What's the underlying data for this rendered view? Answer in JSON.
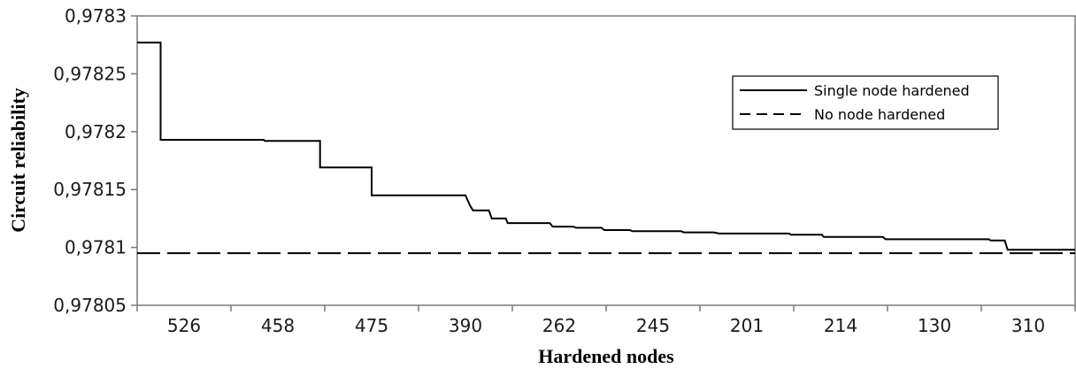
{
  "chart_data": {
    "type": "line",
    "title": "",
    "xlabel": "Hardened nodes",
    "ylabel": "Circuit reliability",
    "ylim": [
      0.97805,
      0.9783
    ],
    "y_ticks": [
      "0,97805",
      "0,9781",
      "0,97815",
      "0,9782",
      "0,97825",
      "0,9783"
    ],
    "y_tick_values": [
      0.97805,
      0.9781,
      0.97815,
      0.9782,
      0.97825,
      0.9783
    ],
    "categories": [
      "526",
      "458",
      "475",
      "390",
      "262",
      "245",
      "201",
      "214",
      "130",
      "310"
    ],
    "x_range": [
      0,
      10
    ],
    "legend_position": "top-right",
    "grid": false,
    "series": [
      {
        "name": "Single node hardened",
        "style": "solid",
        "color": "#000000",
        "points": [
          [
            0.0,
            0.978277
          ],
          [
            0.25,
            0.978277
          ],
          [
            0.25,
            0.978193
          ],
          [
            1.35,
            0.978193
          ],
          [
            1.36,
            0.978192
          ],
          [
            1.95,
            0.978192
          ],
          [
            1.95,
            0.978169
          ],
          [
            2.5,
            0.978169
          ],
          [
            2.5,
            0.978145
          ],
          [
            3.5,
            0.978145
          ],
          [
            3.55,
            0.978136
          ],
          [
            3.58,
            0.978132
          ],
          [
            3.75,
            0.978132
          ],
          [
            3.78,
            0.978125
          ],
          [
            3.93,
            0.978125
          ],
          [
            3.95,
            0.978121
          ],
          [
            4.4,
            0.978121
          ],
          [
            4.43,
            0.978118
          ],
          [
            4.65,
            0.978118
          ],
          [
            4.68,
            0.978117
          ],
          [
            4.95,
            0.978117
          ],
          [
            4.98,
            0.978115
          ],
          [
            5.25,
            0.978115
          ],
          [
            5.28,
            0.978114
          ],
          [
            5.8,
            0.978114
          ],
          [
            5.83,
            0.978113
          ],
          [
            6.15,
            0.978113
          ],
          [
            6.2,
            0.978112
          ],
          [
            6.95,
            0.978112
          ],
          [
            6.97,
            0.978111
          ],
          [
            7.3,
            0.978111
          ],
          [
            7.32,
            0.978109
          ],
          [
            7.95,
            0.978109
          ],
          [
            7.98,
            0.978107
          ],
          [
            9.08,
            0.978107
          ],
          [
            9.1,
            0.978106
          ],
          [
            9.25,
            0.978106
          ],
          [
            9.28,
            0.978098
          ],
          [
            10.0,
            0.978098
          ]
        ]
      },
      {
        "name": "No node hardened",
        "style": "dashed",
        "color": "#000000",
        "points": [
          [
            0.0,
            0.978095
          ],
          [
            10.0,
            0.978095
          ]
        ]
      }
    ]
  }
}
